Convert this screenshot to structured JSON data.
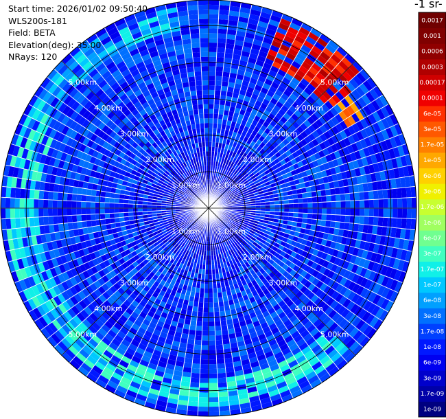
{
  "info": {
    "start_time": "Start time: 2026/01/02 09:50:40",
    "instrument": "WLS200s-181",
    "field": "Field: BETA",
    "elevation": "Elevation(deg): 35.00",
    "nrays": "NRays: 120"
  },
  "colorbar": {
    "unit_label": "-1 sr-",
    "labels": [
      "1e-09",
      "1.7e-09",
      "3e-09",
      "6e-09",
      "1e-08",
      "1.7e-08",
      "3e-08",
      "6e-08",
      "1e-07",
      "1.7e-07",
      "3e-07",
      "6e-07",
      "1e-06",
      "1.7e-06",
      "3e-06",
      "6e-06",
      "1e-05",
      "1.7e-05",
      "3e-05",
      "6e-05",
      "0.0001",
      "0.00017",
      "0.0003",
      "0.0006",
      "0.001",
      "0.0017"
    ],
    "colors": [
      "#000080",
      "#0000a8",
      "#0000cc",
      "#0000f0",
      "#0018ff",
      "#0040ff",
      "#0070ff",
      "#00a0ff",
      "#00c8ff",
      "#10f0e8",
      "#40ffc0",
      "#70ff90",
      "#a0ff60",
      "#c8ff30",
      "#f0f000",
      "#ffd000",
      "#ffa800",
      "#ff8000",
      "#ff5800",
      "#ff3000",
      "#f00000",
      "#d00000",
      "#b00000",
      "#900000",
      "#800000",
      "#700000"
    ]
  },
  "chart_data": {
    "type": "heatmap",
    "projection": "polar PPI",
    "rays": 120,
    "elevation_deg": 35.0,
    "range_rings_km": [
      1.0,
      2.0,
      3.0,
      4.0,
      5.0
    ],
    "ring_labels": [
      "1.00km",
      "2.00km",
      "3.00km",
      "4.00km",
      "5.00km"
    ],
    "max_range_km": 5.7,
    "color_scale": "log",
    "value_range": [
      1e-09,
      0.0017
    ],
    "background_value": 1.5e-08,
    "features": [
      {
        "name": "northeast plume",
        "azimuth_deg": [
          22,
          52
        ],
        "range_km": [
          4.3,
          5.6
        ],
        "value": 0.0001
      },
      {
        "name": "east-northeast cell",
        "azimuth_deg": [
          52,
          60
        ],
        "range_km": [
          4.4,
          4.9
        ],
        "value": 1.7e-05
      },
      {
        "name": "south aerosol band",
        "azimuth_deg": [
          135,
          240
        ],
        "range_km": [
          4.6,
          5.5
        ],
        "value": 1.7e-07
      },
      {
        "name": "west aerosol band",
        "azimuth_deg": [
          240,
          300
        ],
        "range_km": [
          4.7,
          5.6
        ],
        "value": 1.7e-07
      },
      {
        "name": "north-northwest band",
        "azimuth_deg": [
          300,
          350
        ],
        "range_km": [
          4.9,
          5.6
        ],
        "value": 1e-07
      }
    ]
  }
}
